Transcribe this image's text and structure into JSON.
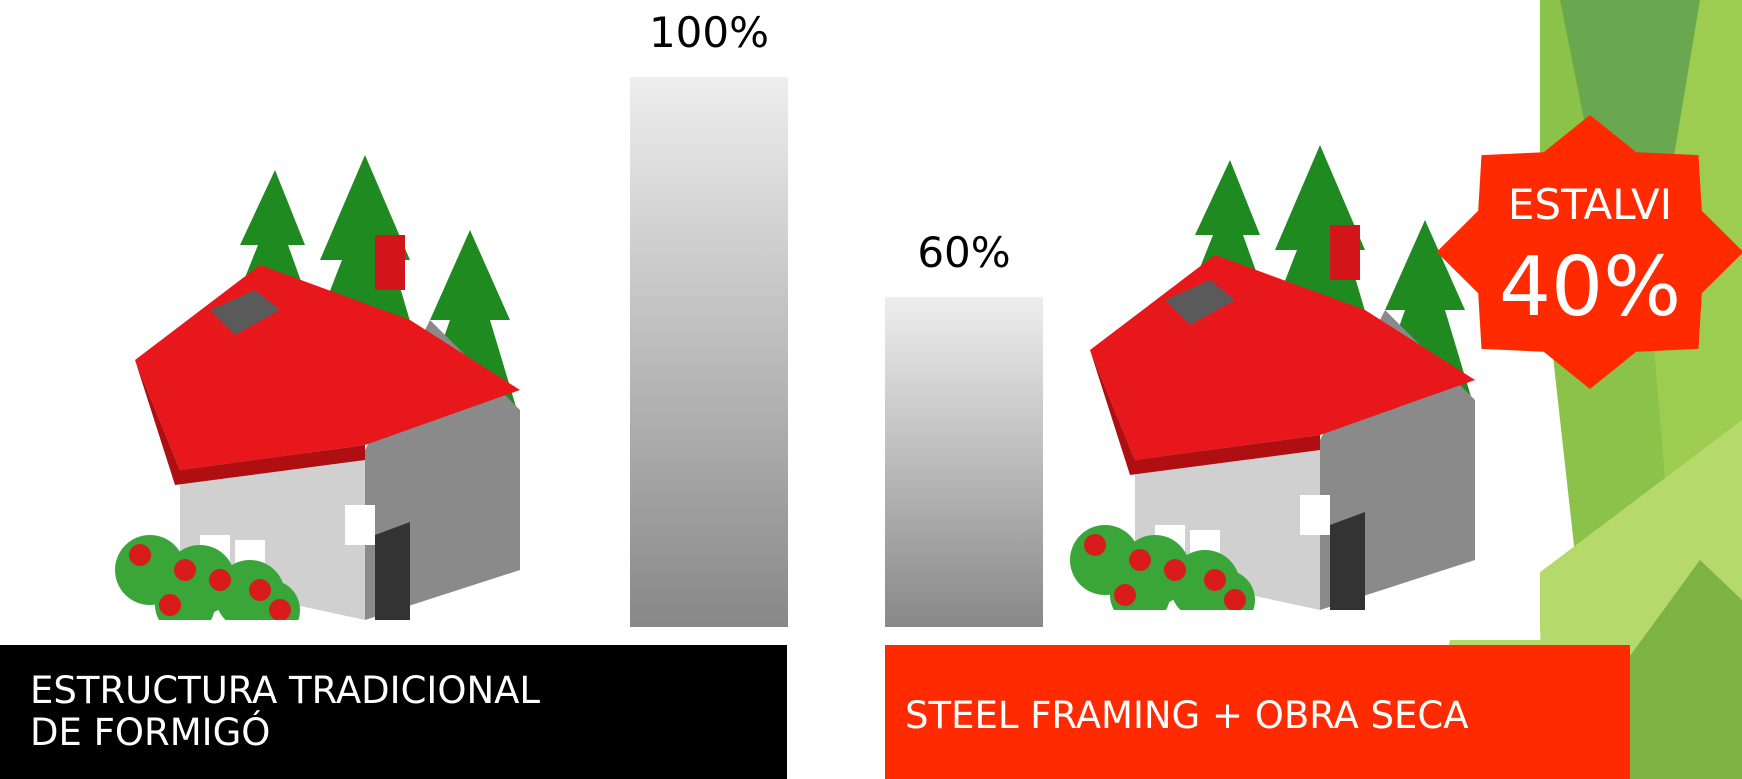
{
  "chart_data": {
    "type": "bar",
    "categories": [
      "ESTRUCTURA TRADICIONAL DE FORMIGÓ",
      "STEEL FRAMING + OBRA SECA"
    ],
    "category_lines": [
      [
        "ESTRUCTURA TRADICIONAL",
        "DE FORMIGÓ"
      ],
      [
        "STEEL FRAMING + OBRA SECA"
      ]
    ],
    "values": [
      100,
      60
    ],
    "value_labels": [
      "100%",
      "60%"
    ],
    "ylim": [
      0,
      100
    ],
    "grid": false,
    "colors": {
      "bar_top": "#eeeeee",
      "bar_bottom": "#888888",
      "category_1_box": "#000000",
      "category_2_box": "#ff2a00"
    }
  },
  "callout": {
    "line1": "ESTALVI",
    "line2": "40%",
    "color": "#ff2a00"
  },
  "decoration": {
    "accent_colors": [
      "#8bc34a",
      "#6aa84f",
      "#b5d96b"
    ],
    "illustration": "house-with-trees-icon"
  }
}
